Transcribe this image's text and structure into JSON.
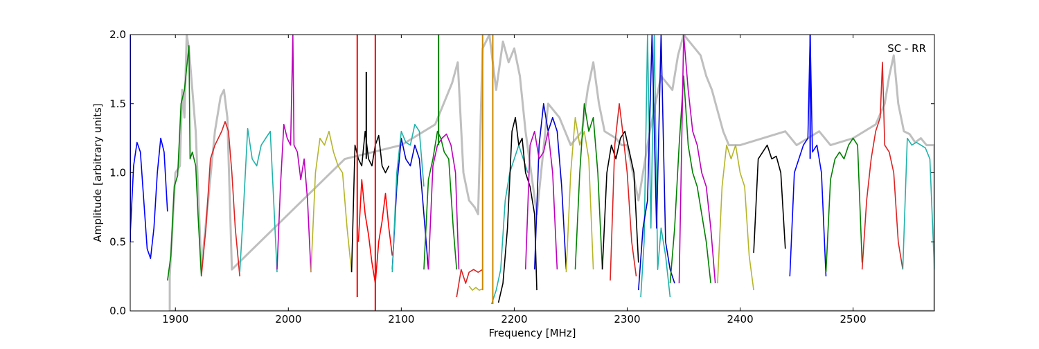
{
  "chart_data": {
    "type": "line",
    "title": "",
    "xlabel": "Frequency [MHz]",
    "ylabel": "Amplitude [arbitrary units]",
    "annotation": "SC - RR",
    "xlim": [
      1860,
      2572
    ],
    "ylim": [
      0.0,
      2.0
    ],
    "xticks": [
      1900,
      2000,
      2100,
      2200,
      2300,
      2400,
      2500
    ],
    "xtick_labels": [
      "1900",
      "2000",
      "2100",
      "2200",
      "2300",
      "2400",
      "2500"
    ],
    "yticks": [
      0.0,
      0.5,
      1.0,
      1.5,
      2.0
    ],
    "ytick_labels": [
      "0.0",
      "0.5",
      "1.0",
      "1.5",
      "2.0"
    ],
    "grid": false,
    "background_trace": {
      "color": "#bfbfbf",
      "x": [
        1895,
        1900,
        1904,
        1906,
        1908,
        1910,
        1912,
        1915,
        1918,
        1923,
        1935,
        1940,
        1943,
        1946,
        1950,
        2050,
        2100,
        2130,
        2135,
        2140,
        2145,
        2150,
        2155,
        2160,
        2165,
        2168,
        2172,
        2178,
        2184,
        2190,
        2195,
        2200,
        2205,
        2210,
        2215,
        2220,
        2230,
        2240,
        2250,
        2260,
        2265,
        2270,
        2275,
        2280,
        2290,
        2295,
        2300,
        2310,
        2320,
        2330,
        2340,
        2345,
        2350,
        2355,
        2360,
        2365,
        2370,
        2375,
        2380,
        2385,
        2390,
        2400,
        2440,
        2450,
        2470,
        2480,
        2500,
        2520,
        2528,
        2532,
        2536,
        2540,
        2545,
        2550,
        2555,
        2560,
        2565,
        2572
      ],
      "y": [
        0.25,
        1.0,
        1.05,
        1.6,
        1.4,
        2.0,
        1.9,
        1.6,
        1.3,
        0.3,
        1.3,
        1.55,
        1.6,
        1.4,
        0.3,
        1.1,
        1.2,
        1.35,
        1.45,
        1.55,
        1.65,
        1.8,
        1.0,
        0.8,
        0.75,
        0.7,
        1.9,
        2.0,
        1.6,
        1.95,
        1.8,
        1.9,
        1.7,
        1.3,
        1.0,
        0.7,
        1.5,
        1.4,
        1.2,
        1.3,
        1.6,
        1.8,
        1.5,
        1.3,
        1.25,
        1.2,
        1.2,
        0.8,
        1.3,
        1.7,
        1.6,
        1.85,
        2.0,
        1.95,
        1.9,
        1.85,
        1.7,
        1.6,
        1.45,
        1.3,
        1.2,
        1.2,
        1.3,
        1.2,
        1.3,
        1.2,
        1.25,
        1.35,
        1.5,
        1.7,
        1.85,
        1.5,
        1.3,
        1.28,
        1.22,
        1.25,
        1.2,
        1.2
      ]
    },
    "series": [
      {
        "color": "#0000ff",
        "x": [
          1860,
          1863,
          1866,
          1869,
          1872,
          1875,
          1878,
          1881,
          1884,
          1887,
          1890,
          1893
        ],
        "y": [
          0.55,
          1.05,
          1.22,
          1.15,
          0.8,
          0.45,
          0.38,
          0.6,
          1.0,
          1.25,
          1.15,
          0.72
        ]
      },
      {
        "color": "#008000",
        "x": [
          1893,
          1896,
          1899,
          1902,
          1905,
          1908,
          1912,
          1913,
          1915,
          1918,
          1920,
          1923
        ],
        "y": [
          0.22,
          0.4,
          0.9,
          0.98,
          1.5,
          1.6,
          1.92,
          1.1,
          1.15,
          1.05,
          0.7,
          0.25
        ]
      },
      {
        "color": "#dd2222",
        "x": [
          1923,
          1927,
          1931,
          1935,
          1938,
          1941,
          1944,
          1947,
          1950,
          1953,
          1957
        ],
        "y": [
          0.25,
          0.6,
          1.1,
          1.2,
          1.25,
          1.3,
          1.37,
          1.3,
          1.0,
          0.6,
          0.25
        ]
      },
      {
        "color": "#20b2aa",
        "x": [
          1957,
          1960,
          1964,
          1968,
          1972,
          1976,
          1980,
          1984,
          1987,
          1990
        ],
        "y": [
          0.28,
          0.7,
          1.32,
          1.1,
          1.05,
          1.2,
          1.25,
          1.3,
          0.8,
          0.28
        ]
      },
      {
        "color": "#bb00bb",
        "x": [
          1990,
          1993,
          1996,
          1999,
          2002,
          2004,
          2005,
          2008,
          2011,
          2014,
          2017,
          2020
        ],
        "y": [
          0.3,
          0.9,
          1.35,
          1.25,
          1.2,
          2.0,
          1.2,
          1.15,
          0.95,
          1.1,
          0.8,
          0.28
        ]
      },
      {
        "color": "#b5b52a",
        "x": [
          2020,
          2024,
          2028,
          2032,
          2036,
          2040,
          2044,
          2048,
          2052,
          2056
        ],
        "y": [
          0.28,
          1.0,
          1.25,
          1.2,
          1.3,
          1.15,
          1.05,
          1.0,
          0.6,
          0.28
        ]
      },
      {
        "color": "#000000",
        "x": [
          2056,
          2059,
          2062,
          2065,
          2068,
          2071,
          2074,
          2077,
          2080,
          2083,
          2086,
          2089
        ],
        "y": [
          0.28,
          1.2,
          1.1,
          1.05,
          1.3,
          1.1,
          1.05,
          1.2,
          1.27,
          1.05,
          1.0,
          1.05
        ]
      },
      {
        "color": "#ff0000",
        "x": [
          2062,
          2065,
          2068,
          2071,
          2074,
          2077,
          2080,
          2083,
          2086,
          2089,
          2092
        ],
        "y": [
          0.5,
          0.95,
          0.7,
          0.55,
          0.35,
          0.2,
          0.5,
          0.65,
          0.85,
          0.6,
          0.4
        ]
      },
      {
        "color": "#0000cc",
        "x": [
          2092,
          2096,
          2100,
          2104,
          2108,
          2112,
          2116,
          2120,
          2124
        ],
        "y": [
          0.3,
          0.9,
          1.25,
          1.1,
          1.05,
          1.2,
          1.1,
          0.7,
          0.3
        ]
      },
      {
        "color": "#20b2aa",
        "x": [
          2092,
          2096,
          2100,
          2104,
          2108,
          2112,
          2116,
          2120
        ],
        "y": [
          0.28,
          1.0,
          1.3,
          1.22,
          1.2,
          1.35,
          1.3,
          0.9
        ]
      },
      {
        "color": "#008000",
        "x": [
          2120,
          2124,
          2128,
          2132,
          2135,
          2138,
          2142,
          2146,
          2149
        ],
        "y": [
          0.3,
          0.95,
          1.1,
          1.3,
          1.25,
          1.15,
          1.1,
          0.6,
          0.3
        ]
      },
      {
        "color": "#bb00bb",
        "x": [
          2124,
          2128,
          2132,
          2136,
          2140,
          2144,
          2148,
          2151
        ],
        "y": [
          0.3,
          1.05,
          1.2,
          1.25,
          1.28,
          1.2,
          1.0,
          0.3
        ]
      },
      {
        "color": "#dd2222",
        "x": [
          2149,
          2153,
          2157,
          2160,
          2164,
          2168,
          2172
        ],
        "y": [
          0.1,
          0.3,
          0.2,
          0.28,
          0.3,
          0.28,
          0.3
        ]
      },
      {
        "color": "#b5b52a",
        "x": [
          2160,
          2163,
          2166,
          2169,
          2172
        ],
        "y": [
          0.18,
          0.15,
          0.17,
          0.15,
          0.16
        ]
      },
      {
        "color": "#20b2aa",
        "x": [
          2180,
          2184,
          2188,
          2192,
          2196,
          2200,
          2204,
          2208,
          2212
        ],
        "y": [
          0.05,
          0.15,
          0.3,
          0.8,
          1.0,
          1.1,
          1.2,
          1.1,
          1.0
        ]
      },
      {
        "color": "#000000",
        "x": [
          2186,
          2190,
          2194,
          2198,
          2201,
          2204,
          2207,
          2210,
          2214,
          2218,
          2220
        ],
        "y": [
          0.06,
          0.2,
          0.6,
          1.3,
          1.4,
          1.2,
          1.25,
          1.0,
          0.9,
          0.7,
          0.15
        ]
      },
      {
        "color": "#0000cc",
        "x": [
          2218,
          2222,
          2226,
          2230,
          2234,
          2238,
          2242,
          2246
        ],
        "y": [
          0.3,
          1.2,
          1.5,
          1.3,
          1.4,
          1.3,
          0.9,
          0.3
        ]
      },
      {
        "color": "#bb00bb",
        "x": [
          2210,
          2214,
          2218,
          2222,
          2226,
          2230,
          2234,
          2238
        ],
        "y": [
          0.3,
          1.2,
          1.3,
          1.1,
          1.15,
          1.3,
          1.0,
          0.3
        ]
      },
      {
        "color": "#b5b52a",
        "x": [
          2246,
          2250,
          2254,
          2258,
          2262,
          2266,
          2270
        ],
        "y": [
          0.28,
          1.0,
          1.4,
          1.2,
          1.3,
          1.1,
          0.3
        ]
      },
      {
        "color": "#008000",
        "x": [
          2254,
          2258,
          2262,
          2266,
          2270,
          2274,
          2278
        ],
        "y": [
          0.3,
          1.0,
          1.5,
          1.3,
          1.4,
          1.0,
          0.3
        ]
      },
      {
        "color": "#000000",
        "x": [
          2278,
          2282,
          2286,
          2290,
          2294,
          2298,
          2302,
          2306,
          2310
        ],
        "y": [
          0.3,
          1.0,
          1.2,
          1.1,
          1.25,
          1.3,
          1.15,
          1.0,
          0.35
        ]
      },
      {
        "color": "#dd2222",
        "x": [
          2285,
          2289,
          2293,
          2296,
          2300,
          2304,
          2308
        ],
        "y": [
          0.22,
          1.2,
          1.5,
          1.3,
          1.0,
          0.5,
          0.25
        ]
      },
      {
        "color": "#20b2aa",
        "x": [
          2312,
          2315,
          2318,
          2321,
          2324,
          2327,
          2330,
          2334,
          2338
        ],
        "y": [
          0.1,
          0.5,
          2.0,
          0.6,
          2.0,
          0.3,
          0.6,
          0.4,
          0.1
        ]
      },
      {
        "color": "#0000cc",
        "x": [
          2310,
          2314,
          2318,
          2322,
          2326,
          2330,
          2334,
          2338,
          2342
        ],
        "y": [
          0.15,
          0.6,
          0.8,
          2.0,
          0.6,
          2.0,
          0.5,
          0.3,
          0.2
        ]
      },
      {
        "color": "#008000",
        "x": [
          2338,
          2342,
          2346,
          2350,
          2354,
          2358,
          2362,
          2366,
          2370,
          2374
        ],
        "y": [
          0.2,
          0.6,
          1.2,
          1.7,
          1.2,
          1.0,
          0.9,
          0.7,
          0.5,
          0.2
        ]
      },
      {
        "color": "#bb00bb",
        "x": [
          2346,
          2350,
          2354,
          2358,
          2362,
          2366,
          2370,
          2374,
          2378
        ],
        "y": [
          0.2,
          2.0,
          1.6,
          1.3,
          1.2,
          1.0,
          0.9,
          0.6,
          0.2
        ]
      },
      {
        "color": "#b5b52a",
        "x": [
          2380,
          2384,
          2388,
          2392,
          2396,
          2400,
          2404,
          2408,
          2412
        ],
        "y": [
          0.2,
          0.9,
          1.2,
          1.1,
          1.2,
          1.0,
          0.9,
          0.4,
          0.15
        ]
      },
      {
        "color": "#000000",
        "x": [
          2412,
          2416,
          2420,
          2424,
          2428,
          2432,
          2436,
          2440
        ],
        "y": [
          0.42,
          1.1,
          1.15,
          1.2,
          1.1,
          1.12,
          1.0,
          0.45
        ]
      },
      {
        "color": "#0000ff",
        "x": [
          2444,
          2448,
          2452,
          2456,
          2460,
          2462,
          2464,
          2468,
          2472,
          2476
        ],
        "y": [
          0.25,
          1.0,
          1.1,
          1.2,
          1.25,
          2.0,
          1.15,
          1.2,
          1.0,
          0.25
        ]
      },
      {
        "color": "#008000",
        "x": [
          2476,
          2480,
          2484,
          2488,
          2492,
          2496,
          2500,
          2504,
          2508
        ],
        "y": [
          0.28,
          0.95,
          1.1,
          1.15,
          1.1,
          1.2,
          1.25,
          1.2,
          0.35
        ]
      },
      {
        "color": "#dd2222",
        "x": [
          2508,
          2512,
          2516,
          2520,
          2524,
          2526,
          2528,
          2532,
          2536,
          2540,
          2544
        ],
        "y": [
          0.3,
          0.8,
          1.1,
          1.3,
          1.4,
          1.8,
          1.2,
          1.15,
          1.0,
          0.5,
          0.3
        ]
      },
      {
        "color": "#20b2aa",
        "x": [
          2544,
          2548,
          2552,
          2556,
          2560,
          2564,
          2568,
          2572
        ],
        "y": [
          0.3,
          1.25,
          1.2,
          1.22,
          1.2,
          1.18,
          1.1,
          0.3
        ]
      }
    ],
    "spikes": [
      {
        "color": "#0000ff",
        "x": 1860,
        "y0": 0.5,
        "y1": 2.0
      },
      {
        "color": "#ff0000",
        "x": 2061,
        "y0": 0.1,
        "y1": 2.0
      },
      {
        "color": "#ff0000",
        "x": 2077,
        "y0": 0.0,
        "y1": 2.0
      },
      {
        "color": "#000000",
        "x": 2069,
        "y0": 1.1,
        "y1": 1.73
      },
      {
        "color": "#008000",
        "x": 2133,
        "y0": 1.2,
        "y1": 2.0
      },
      {
        "color": "#cc8800",
        "x": 2172,
        "y0": 0.15,
        "y1": 2.0
      },
      {
        "color": "#cc8800",
        "x": 2181,
        "y0": 0.05,
        "y1": 2.0
      },
      {
        "color": "#0000ff",
        "x": 2462,
        "y0": 1.1,
        "y1": 2.0
      }
    ]
  }
}
